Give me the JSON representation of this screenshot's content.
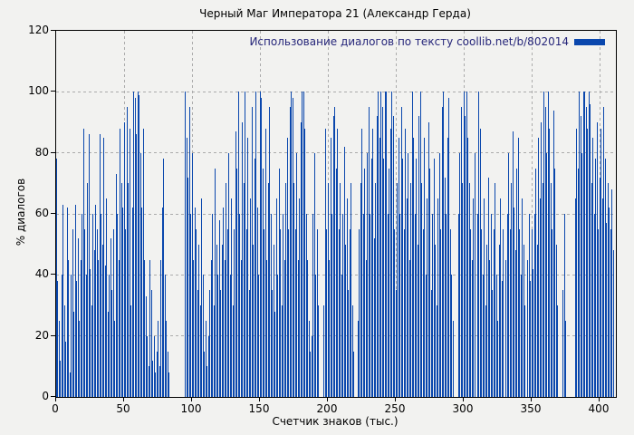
{
  "chart_data": {
    "type": "bar",
    "title": "Черный Маг Императора 21 (Александр Герда)",
    "legend": "Использование диалогов по тексту coollib.net/b/802014",
    "xlabel": "Счетчик знаков (тыс.)",
    "ylabel": "% диалогов",
    "xlim": [
      0,
      412
    ],
    "ylim": [
      0,
      120
    ],
    "xticks": [
      0,
      50,
      100,
      150,
      200,
      250,
      300,
      350,
      400
    ],
    "yticks": [
      0,
      20,
      40,
      60,
      80,
      100,
      120
    ],
    "grid": "dashed, on both axes",
    "legend_position": "top-right",
    "x_start": 0,
    "x_step": 1,
    "values": [
      78,
      38,
      25,
      12,
      40,
      63,
      30,
      18,
      62,
      45,
      8,
      40,
      55,
      28,
      63,
      38,
      52,
      25,
      45,
      60,
      88,
      55,
      40,
      70,
      86,
      42,
      30,
      60,
      48,
      63,
      55,
      45,
      86,
      60,
      50,
      85,
      43,
      65,
      28,
      40,
      52,
      35,
      55,
      25,
      73,
      60,
      45,
      88,
      70,
      62,
      90,
      55,
      95,
      70,
      88,
      30,
      62,
      100,
      98,
      86,
      100,
      99,
      80,
      62,
      88,
      45,
      33,
      20,
      10,
      45,
      35,
      12,
      20,
      8,
      15,
      25,
      10,
      45,
      62,
      78,
      40,
      25,
      15,
      8,
      0,
      0,
      0,
      0,
      0,
      0,
      0,
      0,
      0,
      0,
      0,
      100,
      85,
      72,
      95,
      60,
      80,
      45,
      62,
      55,
      35,
      50,
      30,
      65,
      40,
      15,
      25,
      10,
      20,
      35,
      45,
      60,
      30,
      75,
      50,
      40,
      58,
      35,
      50,
      62,
      45,
      70,
      55,
      80,
      40,
      65,
      30,
      55,
      87,
      75,
      100,
      60,
      45,
      90,
      70,
      100,
      55,
      85,
      35,
      65,
      95,
      50,
      78,
      100,
      62,
      40,
      100,
      98,
      75,
      55,
      88,
      45,
      70,
      95,
      60,
      35,
      50,
      28,
      65,
      40,
      75,
      55,
      30,
      60,
      45,
      70,
      85,
      55,
      95,
      100,
      98,
      70,
      55,
      80,
      45,
      65,
      90,
      100,
      100,
      88,
      60,
      45,
      25,
      15,
      20,
      60,
      80,
      40,
      55,
      30,
      0,
      0,
      0,
      30,
      88,
      55,
      70,
      45,
      85,
      60,
      92,
      95,
      75,
      88,
      55,
      70,
      40,
      60,
      82,
      50,
      65,
      35,
      55,
      70,
      30,
      15,
      0,
      0,
      25,
      55,
      70,
      88,
      60,
      75,
      45,
      80,
      95,
      60,
      78,
      88,
      52,
      70,
      92,
      100,
      85,
      100,
      95,
      78,
      100,
      100,
      60,
      75,
      88,
      100,
      92,
      55,
      35,
      70,
      85,
      60,
      95,
      78,
      55,
      88,
      65,
      80,
      45,
      70,
      100,
      85,
      60,
      78,
      50,
      92,
      100,
      70,
      55,
      85,
      40,
      65,
      90,
      75,
      35,
      60,
      78,
      50,
      30,
      65,
      80,
      55,
      95,
      100,
      72,
      60,
      85,
      98,
      55,
      40,
      25,
      0,
      0,
      0,
      60,
      80,
      95,
      70,
      100,
      92,
      100,
      85,
      70,
      55,
      45,
      65,
      80,
      0,
      60,
      100,
      88,
      55,
      40,
      65,
      30,
      50,
      72,
      45,
      60,
      35,
      55,
      70,
      40,
      25,
      50,
      65,
      38,
      55,
      0,
      45,
      60,
      80,
      55,
      70,
      87,
      62,
      48,
      75,
      85,
      55,
      40,
      65,
      50,
      30,
      0,
      45,
      60,
      38,
      55,
      42,
      60,
      75,
      50,
      85,
      65,
      90,
      70,
      100,
      95,
      80,
      100,
      88,
      70,
      55,
      94,
      75,
      50,
      30,
      0,
      0,
      0,
      35,
      60,
      25,
      0,
      0,
      0,
      0,
      0,
      0,
      65,
      88,
      75,
      100,
      92,
      80,
      100,
      100,
      95,
      88,
      100,
      96,
      70,
      85,
      60,
      78,
      90,
      55,
      72,
      88,
      65,
      95,
      78,
      57,
      70,
      62,
      55,
      68,
      48
    ],
    "colors": {
      "bar": "#0a47ad",
      "background": "#f2f2f0",
      "grid": "#ababab",
      "border": "#000000",
      "legend_text": "#26267a",
      "tick_text": "#000000"
    }
  }
}
